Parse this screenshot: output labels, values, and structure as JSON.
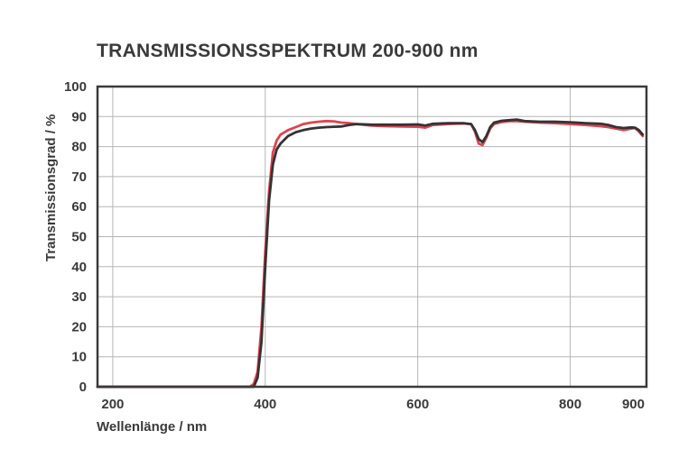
{
  "chart_data": {
    "type": "line",
    "title": "TRANSMISSIONSSPEKTRUM 200-900 nm",
    "xlabel": "Wellenlänge / nm",
    "ylabel": "Transmissionsgrad / %",
    "xlim": [
      180,
      900
    ],
    "ylim": [
      0,
      100
    ],
    "xticks": [
      200,
      400,
      600,
      800,
      900
    ],
    "yticks": [
      0,
      10,
      20,
      30,
      40,
      50,
      60,
      70,
      80,
      90,
      100
    ],
    "grid": true,
    "legend": "none",
    "series": [
      {
        "color": "#e0424f",
        "points": [
          [
            180,
            0
          ],
          [
            300,
            0
          ],
          [
            380,
            0
          ],
          [
            385,
            1
          ],
          [
            390,
            5
          ],
          [
            395,
            20
          ],
          [
            400,
            45
          ],
          [
            405,
            65
          ],
          [
            410,
            78
          ],
          [
            415,
            82
          ],
          [
            420,
            84
          ],
          [
            430,
            85.5
          ],
          [
            440,
            86.5
          ],
          [
            450,
            87.5
          ],
          [
            460,
            88
          ],
          [
            470,
            88.3
          ],
          [
            480,
            88.5
          ],
          [
            490,
            88.4
          ],
          [
            500,
            88
          ],
          [
            510,
            87.8
          ],
          [
            520,
            87.5
          ],
          [
            540,
            87
          ],
          [
            560,
            86.8
          ],
          [
            580,
            86.7
          ],
          [
            600,
            86.6
          ],
          [
            610,
            86.3
          ],
          [
            620,
            87.2
          ],
          [
            640,
            87.5
          ],
          [
            660,
            87.7
          ],
          [
            670,
            87.5
          ],
          [
            675,
            85
          ],
          [
            680,
            81
          ],
          [
            685,
            80.5
          ],
          [
            690,
            83
          ],
          [
            695,
            86
          ],
          [
            700,
            87.5
          ],
          [
            710,
            88.2
          ],
          [
            720,
            88.5
          ],
          [
            730,
            88.5
          ],
          [
            740,
            88.3
          ],
          [
            760,
            88
          ],
          [
            780,
            87.8
          ],
          [
            800,
            87.5
          ],
          [
            820,
            87.2
          ],
          [
            840,
            86.8
          ],
          [
            850,
            86.5
          ],
          [
            860,
            86
          ],
          [
            870,
            85.5
          ],
          [
            880,
            86
          ],
          [
            885,
            86.2
          ],
          [
            890,
            85
          ],
          [
            895,
            83.5
          ]
        ]
      },
      {
        "color": "#333333",
        "points": [
          [
            180,
            0
          ],
          [
            300,
            0
          ],
          [
            385,
            0
          ],
          [
            390,
            3
          ],
          [
            395,
            15
          ],
          [
            400,
            40
          ],
          [
            405,
            62
          ],
          [
            410,
            74
          ],
          [
            415,
            79
          ],
          [
            420,
            81
          ],
          [
            430,
            83.5
          ],
          [
            440,
            84.8
          ],
          [
            450,
            85.5
          ],
          [
            460,
            86
          ],
          [
            470,
            86.3
          ],
          [
            480,
            86.5
          ],
          [
            490,
            86.6
          ],
          [
            500,
            86.7
          ],
          [
            510,
            87.2
          ],
          [
            520,
            87.5
          ],
          [
            540,
            87.3
          ],
          [
            560,
            87.3
          ],
          [
            580,
            87.3
          ],
          [
            600,
            87.4
          ],
          [
            610,
            87
          ],
          [
            620,
            87.6
          ],
          [
            640,
            87.8
          ],
          [
            660,
            87.8
          ],
          [
            670,
            87.5
          ],
          [
            675,
            85.5
          ],
          [
            680,
            82.5
          ],
          [
            685,
            81.5
          ],
          [
            690,
            83.5
          ],
          [
            695,
            86.5
          ],
          [
            700,
            88
          ],
          [
            710,
            88.6
          ],
          [
            720,
            88.8
          ],
          [
            730,
            89
          ],
          [
            740,
            88.5
          ],
          [
            760,
            88.3
          ],
          [
            780,
            88.3
          ],
          [
            800,
            88.1
          ],
          [
            820,
            87.8
          ],
          [
            840,
            87.6
          ],
          [
            850,
            87.2
          ],
          [
            860,
            86.5
          ],
          [
            870,
            86.2
          ],
          [
            880,
            86.4
          ],
          [
            885,
            86.3
          ],
          [
            890,
            85.5
          ],
          [
            895,
            84
          ]
        ]
      }
    ]
  }
}
